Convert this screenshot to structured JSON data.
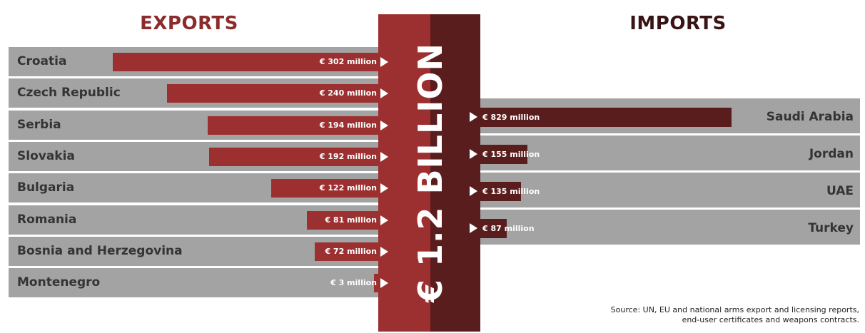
{
  "colors": {
    "bar": "#9c2f2f",
    "bar_dark": "#5a1d1d",
    "row_bg": "#a3a3a3",
    "heading": "#8c2b2b",
    "heading_dark": "#3a1414"
  },
  "headings": {
    "exports": "EXPORTS",
    "imports": "IMPORTS"
  },
  "total": "€ 1.2 BILLION",
  "source": {
    "line1": "Source: UN, EU and national arms export and licensing reports,",
    "line2": "end-user certificates and weapons contracts."
  },
  "chart_data": [
    {
      "type": "bar",
      "title": "EXPORTS",
      "categories": [
        "Croatia",
        "Czech Republic",
        "Serbia",
        "Slovakia",
        "Bulgaria",
        "Romania",
        "Bosnia and Herzegovina",
        "Montenegro"
      ],
      "values": [
        302,
        240,
        194,
        192,
        122,
        81,
        72,
        3
      ],
      "value_labels": [
        "€ 302 million",
        "€ 240 million",
        "€ 194 million",
        "€ 192 million",
        "€ 122 million",
        "€ 81 million",
        "€ 72 million",
        "€ 3 million"
      ],
      "unit": "€ million",
      "orientation": "horizontal",
      "direction": "right-to-left"
    },
    {
      "type": "bar",
      "title": "IMPORTS",
      "categories": [
        "Saudi Arabia",
        "Jordan",
        "UAE",
        "Turkey"
      ],
      "values": [
        829,
        155,
        135,
        87
      ],
      "value_labels": [
        "€ 829 million",
        "€ 155 million",
        "€ 135 million",
        "€ 87 million"
      ],
      "unit": "€ million",
      "orientation": "horizontal",
      "direction": "left-to-right"
    }
  ]
}
